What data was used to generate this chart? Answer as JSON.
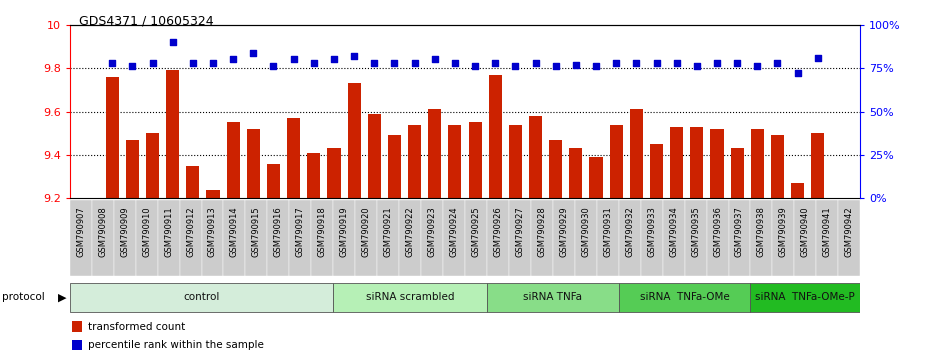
{
  "title": "GDS4371 / 10605324",
  "samples": [
    "GSM790907",
    "GSM790908",
    "GSM790909",
    "GSM790910",
    "GSM790911",
    "GSM790912",
    "GSM790913",
    "GSM790914",
    "GSM790915",
    "GSM790916",
    "GSM790917",
    "GSM790918",
    "GSM790919",
    "GSM790920",
    "GSM790921",
    "GSM790922",
    "GSM790923",
    "GSM790924",
    "GSM790925",
    "GSM790926",
    "GSM790927",
    "GSM790928",
    "GSM790929",
    "GSM790930",
    "GSM790931",
    "GSM790932",
    "GSM790933",
    "GSM790934",
    "GSM790935",
    "GSM790936",
    "GSM790937",
    "GSM790938",
    "GSM790939",
    "GSM790940",
    "GSM790941",
    "GSM790942"
  ],
  "bar_values": [
    9.76,
    9.47,
    9.5,
    9.79,
    9.35,
    9.24,
    9.55,
    9.52,
    9.36,
    9.57,
    9.41,
    9.43,
    9.73,
    9.59,
    9.49,
    9.54,
    9.61,
    9.54,
    9.55,
    9.77,
    9.54,
    9.58,
    9.47,
    9.43,
    9.39,
    9.54,
    9.61,
    9.45,
    9.53,
    9.53,
    9.52,
    9.43,
    9.52,
    9.49,
    9.27,
    9.5
  ],
  "blue_values": [
    78,
    76,
    78,
    90,
    78,
    78,
    80,
    84,
    76,
    80,
    78,
    80,
    82,
    78,
    78,
    78,
    80,
    78,
    76,
    78,
    76,
    78,
    76,
    77,
    76,
    78,
    78,
    78,
    78,
    76,
    78,
    78,
    76,
    78,
    72,
    81
  ],
  "groups": [
    {
      "label": "control",
      "start": 0,
      "end": 11,
      "color": "#d4edda"
    },
    {
      "label": "siRNA scrambled",
      "start": 12,
      "end": 18,
      "color": "#b6f0b6"
    },
    {
      "label": "siRNA TNFa",
      "start": 19,
      "end": 24,
      "color": "#88dd88"
    },
    {
      "label": "siRNA  TNFa-OMe",
      "start": 25,
      "end": 30,
      "color": "#55cc55"
    },
    {
      "label": "siRNA  TNFa-OMe-P",
      "start": 31,
      "end": 35,
      "color": "#22bb22"
    }
  ],
  "bar_color": "#cc2200",
  "dot_color": "#0000cc",
  "ylim_left": [
    9.2,
    10.0
  ],
  "ylim_right": [
    0,
    100
  ],
  "yticks_left": [
    9.2,
    9.4,
    9.6,
    9.8,
    10.0
  ],
  "ytick_labels_left": [
    "9.2",
    "9.4",
    "9.6",
    "9.8",
    "10"
  ],
  "yticks_right": [
    0,
    25,
    50,
    75,
    100
  ],
  "ytick_labels_right": [
    "0%",
    "25%",
    "50%",
    "75%",
    "100%"
  ],
  "hlines": [
    9.4,
    9.6,
    9.8
  ],
  "tick_bg": "#cccccc"
}
